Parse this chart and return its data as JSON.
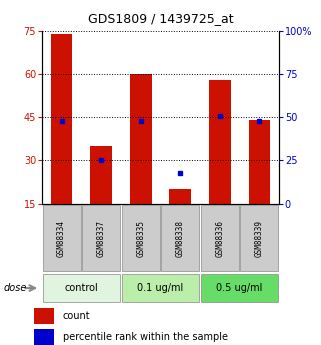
{
  "title": "GDS1809 / 1439725_at",
  "samples": [
    "GSM88334",
    "GSM88337",
    "GSM88335",
    "GSM88338",
    "GSM88336",
    "GSM88339"
  ],
  "count_values": [
    74,
    35,
    60,
    20,
    58,
    44
  ],
  "percentile_values": [
    48,
    25,
    48,
    18,
    51,
    48
  ],
  "ylim_left": [
    15,
    75
  ],
  "ylim_right": [
    0,
    100
  ],
  "yticks_left": [
    15,
    30,
    45,
    60,
    75
  ],
  "yticks_right": [
    0,
    25,
    50,
    75,
    100
  ],
  "bar_color": "#cc1100",
  "marker_color": "#0000cc",
  "bar_width": 0.55,
  "groups": [
    {
      "label": "control",
      "indices": [
        0,
        1
      ],
      "color": "#e0f5e0"
    },
    {
      "label": "0.1 ug/ml",
      "indices": [
        2,
        3
      ],
      "color": "#bbeeaa"
    },
    {
      "label": "0.5 ug/ml",
      "indices": [
        4,
        5
      ],
      "color": "#66dd66"
    }
  ],
  "dose_label": "dose",
  "legend_count": "count",
  "legend_percentile": "percentile rank within the sample",
  "sample_box_color": "#cccccc",
  "grid_color": "#000000",
  "background_color": "#ffffff",
  "title_fontsize": 9,
  "tick_fontsize": 7,
  "sample_fontsize": 5.5,
  "dose_fontsize": 7,
  "legend_fontsize": 7
}
